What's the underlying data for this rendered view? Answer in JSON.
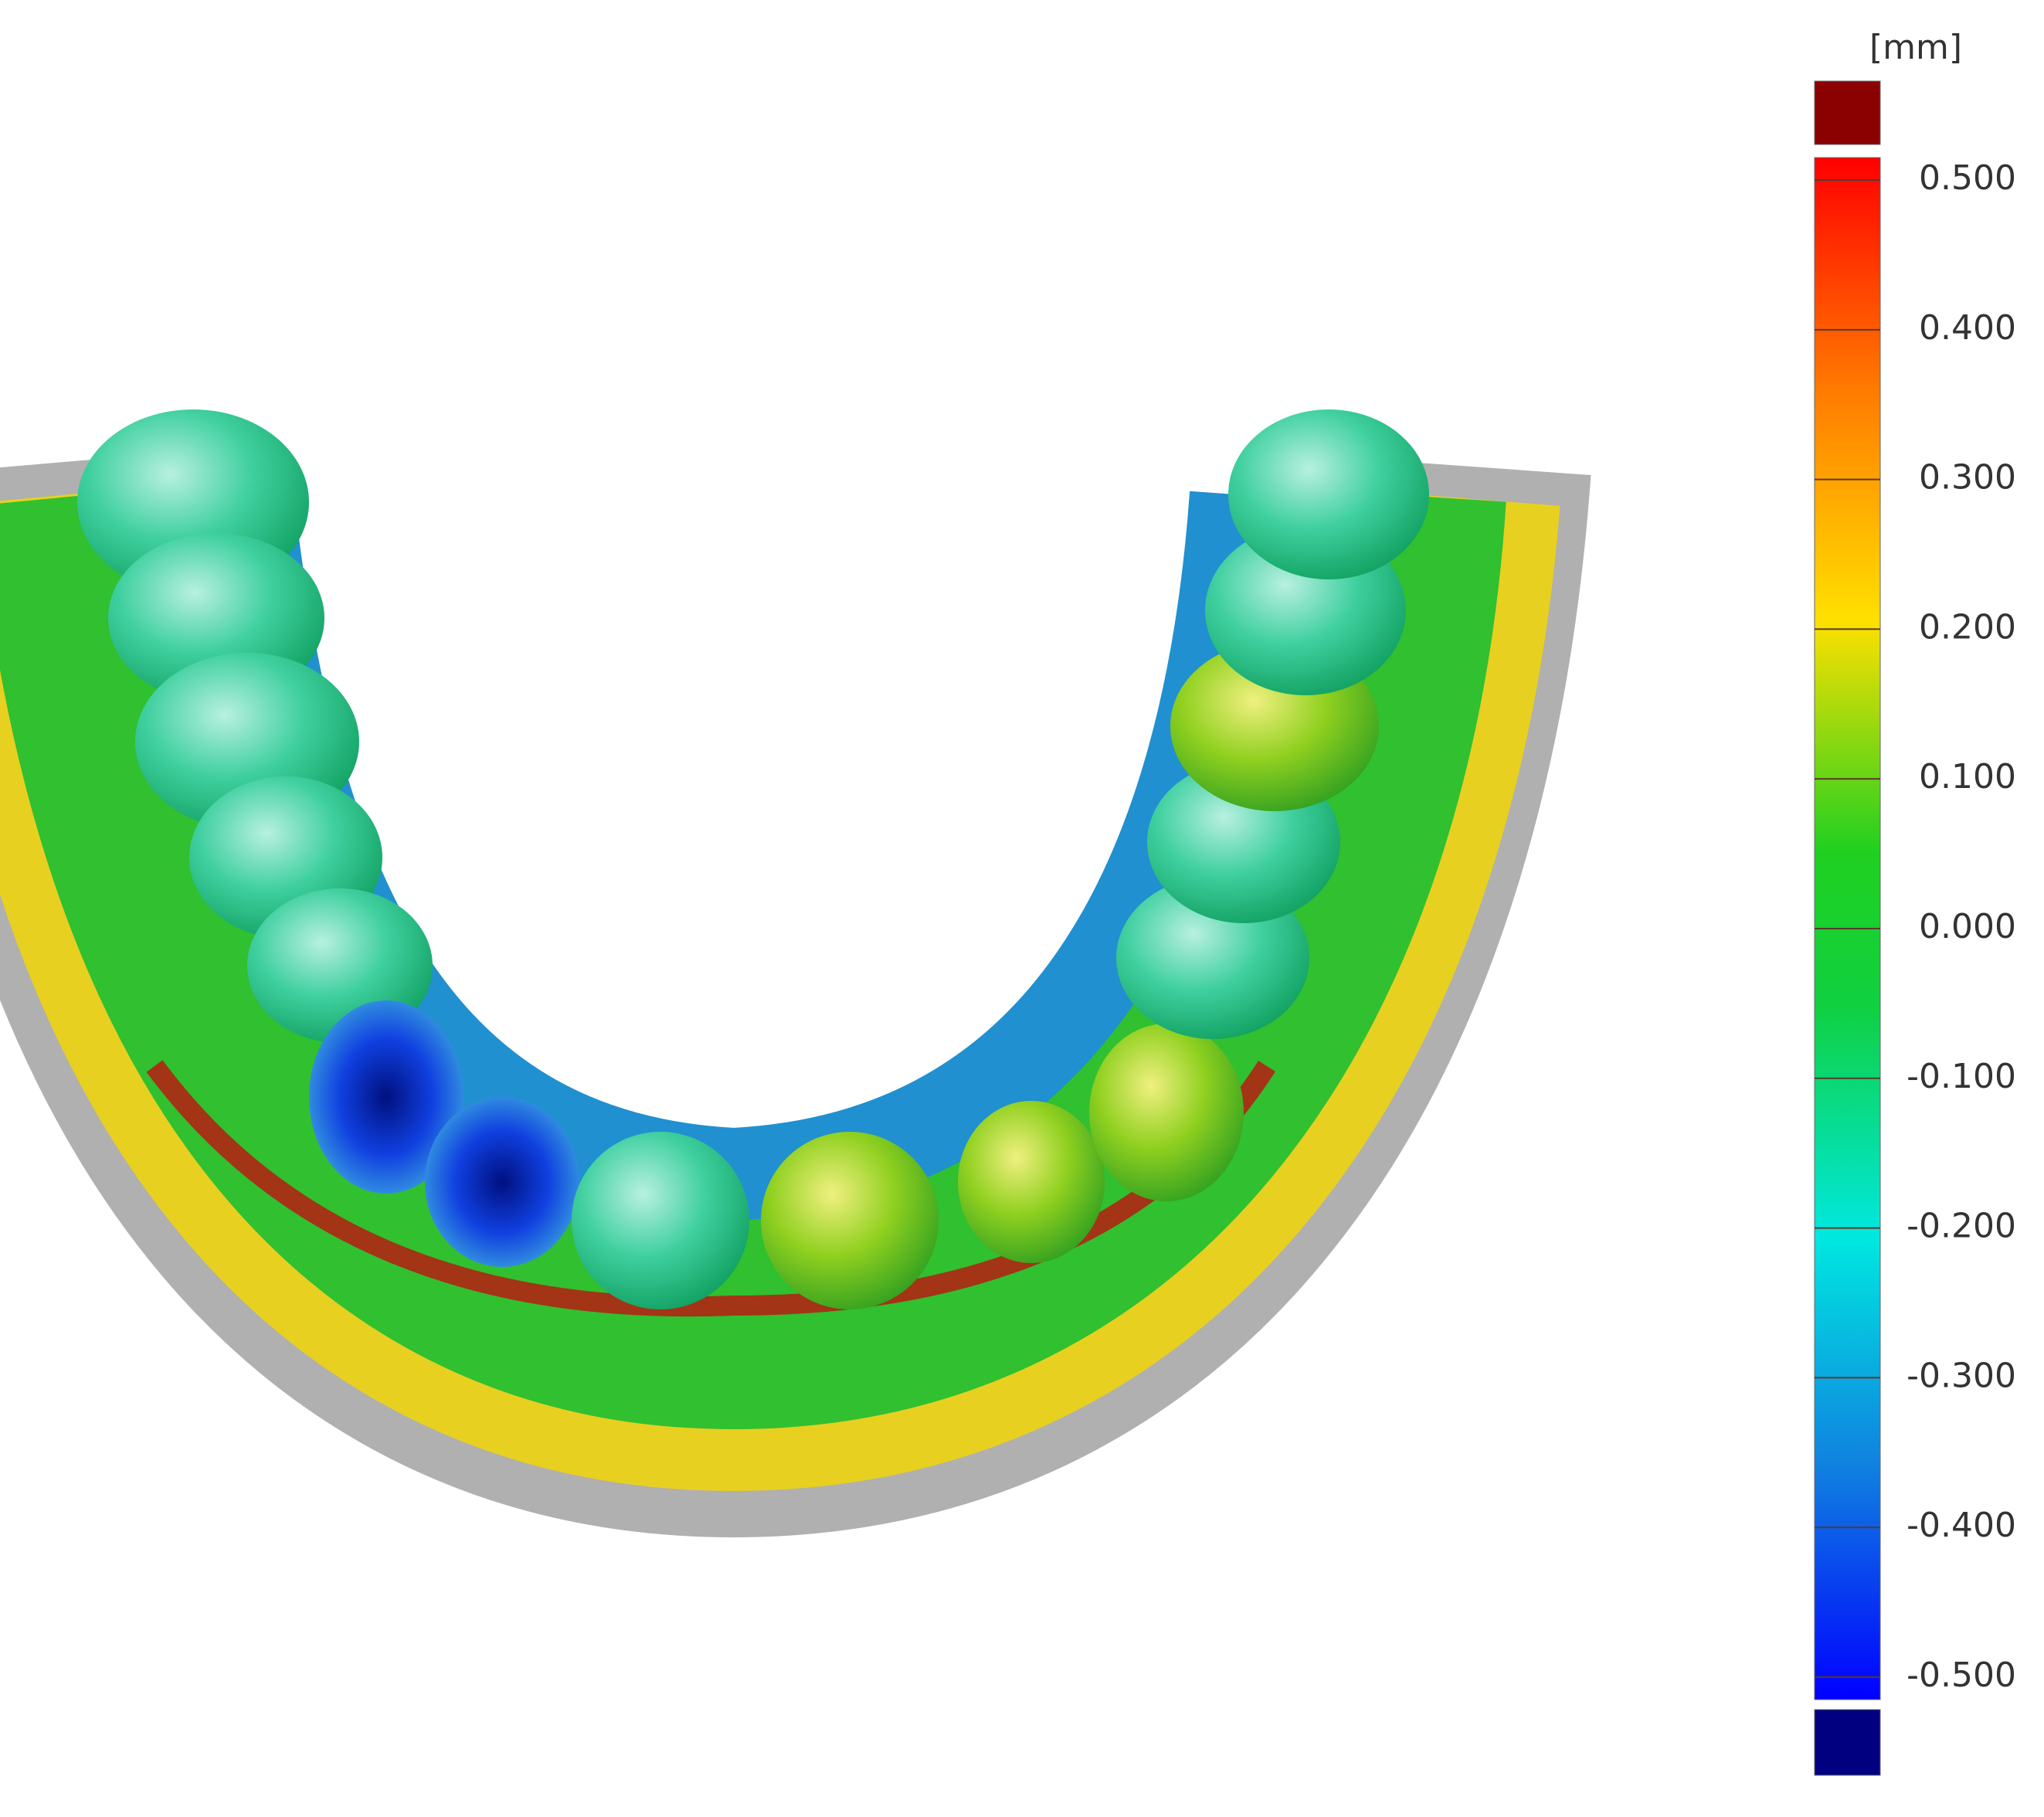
{
  "colorbar": {
    "unit": "[mm]",
    "lim": [
      -0.515,
      0.515
    ],
    "ticks": [
      {
        "value": 0.5,
        "label": "0.500"
      },
      {
        "value": 0.4,
        "label": "0.400"
      },
      {
        "value": 0.3,
        "label": "0.300"
      },
      {
        "value": 0.2,
        "label": "0.200"
      },
      {
        "value": 0.1,
        "label": "0.100"
      },
      {
        "value": 0,
        "label": "0.000"
      },
      {
        "value": -0.1,
        "label": "-0.100"
      },
      {
        "value": -0.2,
        "label": "-0.200"
      },
      {
        "value": -0.3,
        "label": "-0.300"
      },
      {
        "value": -0.4,
        "label": "-0.400"
      },
      {
        "value": -0.5,
        "label": "-0.500"
      }
    ]
  }
}
